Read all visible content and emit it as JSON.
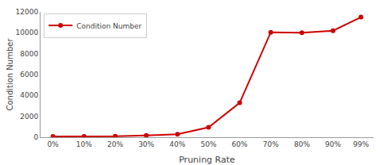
{
  "chart_data": {
    "type": "line",
    "x": [
      0,
      10,
      20,
      30,
      40,
      50,
      60,
      70,
      80,
      90,
      99
    ],
    "series": [
      {
        "name": "Condition Number",
        "color": "#cc0000",
        "marker": "circle",
        "values": [
          80,
          85,
          90,
          180,
          280,
          950,
          3300,
          10050,
          10000,
          10200,
          11500
        ]
      }
    ],
    "xlabel": "Pruning Rate",
    "ylabel": "Condition Number",
    "xlim": [
      -4,
      103
    ],
    "xticks": [
      {
        "value": 0,
        "label": "0%"
      },
      {
        "value": 10,
        "label": "10%"
      },
      {
        "value": 20,
        "label": "20%"
      },
      {
        "value": 30,
        "label": "30%"
      },
      {
        "value": 40,
        "label": "40%"
      },
      {
        "value": 50,
        "label": "50%"
      },
      {
        "value": 60,
        "label": "60%"
      },
      {
        "value": 70,
        "label": "70%"
      },
      {
        "value": 80,
        "label": "80%"
      },
      {
        "value": 90,
        "label": "90%"
      },
      {
        "value": 99,
        "label": "99%"
      }
    ],
    "ylim": [
      0,
      12000
    ],
    "yticks": [
      0,
      2000,
      4000,
      6000,
      8000,
      10000,
      12000
    ],
    "grid": false,
    "legend": "upper left"
  }
}
